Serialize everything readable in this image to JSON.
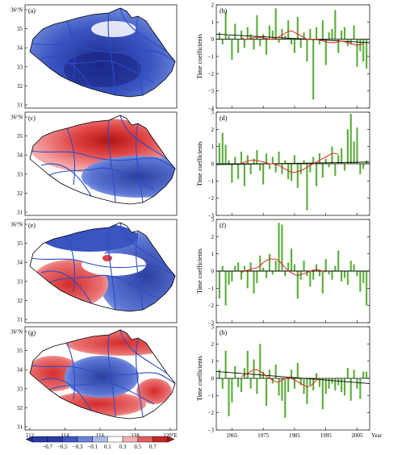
{
  "chart_data": [
    {
      "type": "map",
      "panel": "(a)",
      "field": "negative"
    },
    {
      "type": "map",
      "panel": "(c)",
      "field": "dipole-NS"
    },
    {
      "type": "map",
      "panel": "(e)",
      "field": "dipole-SW"
    },
    {
      "type": "map",
      "panel": "(g)",
      "field": "tripole"
    },
    {
      "type": "bar",
      "panel": "(b)",
      "ylabel": "Time coefficients",
      "ylim": [
        -4,
        2
      ],
      "yticks": [
        -4,
        -3,
        -2,
        -1,
        0,
        1,
        2
      ],
      "x": [
        1961,
        1962,
        1963,
        1964,
        1965,
        1966,
        1967,
        1968,
        1969,
        1970,
        1971,
        1972,
        1973,
        1974,
        1975,
        1976,
        1977,
        1978,
        1979,
        1980,
        1981,
        1982,
        1983,
        1984,
        1985,
        1986,
        1987,
        1988,
        1989,
        1990,
        1991,
        1992,
        1993,
        1994,
        1995,
        1996,
        1997,
        1998,
        1999,
        2000,
        2001,
        2002,
        2003,
        2004,
        2005,
        2006,
        2007,
        2008
      ],
      "values": [
        0.4,
        -0.3,
        1.6,
        0.2,
        -1.2,
        0.9,
        -0.8,
        0.5,
        -0.5,
        0.7,
        0.3,
        -0.6,
        1.4,
        -0.4,
        0.3,
        -0.9,
        0.8,
        0.5,
        1.8,
        -0.2,
        0.6,
        0.2,
        1.1,
        -0.3,
        -0.8,
        1.3,
        -0.5,
        0.4,
        -1.3,
        0.6,
        -3.5,
        0.7,
        -0.3,
        1.1,
        -1.5,
        0.4,
        0.6,
        1.7,
        -0.8,
        0.5,
        0.7,
        -0.4,
        -0.3,
        0.8,
        -1.6,
        -0.7,
        -1.3,
        -1.7
      ],
      "smooth": [
        0.1,
        0.0,
        0.0,
        0.05,
        0.1,
        0.1,
        0.1,
        0.1,
        0.05,
        0.0,
        0.0,
        0.05,
        0.15,
        0.25,
        0.35,
        0.45,
        0.5,
        0.4,
        0.3,
        0.2,
        0.1,
        0.0,
        0.0,
        0.0,
        0.0,
        -0.05,
        -0.1,
        -0.15,
        -0.2,
        -0.2,
        -0.2,
        -0.15,
        -0.1,
        -0.15,
        -0.2,
        -0.25,
        -0.3,
        -0.35,
        -0.3,
        -0.25
      ],
      "trend": [
        0.3,
        -0.2
      ]
    },
    {
      "type": "bar",
      "panel": "(d)",
      "ylabel": "Time coefficients",
      "ylim": [
        -3,
        3
      ],
      "yticks": [
        -3,
        -2,
        -1,
        0,
        1,
        2,
        3
      ],
      "x": [
        1961,
        1962,
        1963,
        1964,
        1965,
        1966,
        1967,
        1968,
        1969,
        1970,
        1971,
        1972,
        1973,
        1974,
        1975,
        1976,
        1977,
        1978,
        1979,
        1980,
        1981,
        1982,
        1983,
        1984,
        1985,
        1986,
        1987,
        1988,
        1989,
        1990,
        1991,
        1992,
        1993,
        1994,
        1995,
        1996,
        1997,
        1998,
        1999,
        2000,
        2001,
        2002,
        2003,
        2004,
        2005,
        2006,
        2007,
        2008
      ],
      "values": [
        1.2,
        1.8,
        1.1,
        0.2,
        -1.1,
        0.4,
        -0.9,
        0.7,
        -1.3,
        0.5,
        -0.6,
        0.3,
        0.8,
        -0.4,
        -1.2,
        0.6,
        -0.3,
        0.4,
        -0.5,
        0.7,
        -0.6,
        0.2,
        -0.9,
        -1.0,
        0.5,
        -1.4,
        -0.6,
        0.2,
        -2.7,
        -0.5,
        0.4,
        -1.3,
        0.6,
        -0.8,
        0.3,
        -0.2,
        1.0,
        -0.7,
        0.5,
        0.9,
        -0.4,
        2.0,
        2.9,
        1.3,
        2.1,
        -0.6,
        -0.3,
        0.2
      ],
      "smooth": [
        0.0,
        0.1,
        0.15,
        0.2,
        0.2,
        0.2,
        0.15,
        0.1,
        0.05,
        0.0,
        0.0,
        -0.05,
        -0.1,
        -0.2,
        -0.3,
        -0.4,
        -0.5,
        -0.5,
        -0.45,
        -0.4,
        -0.3,
        -0.2,
        -0.1,
        0.0,
        0.1,
        0.2,
        0.3,
        0.4,
        0.5,
        0.6,
        0.6,
        0.55
      ],
      "trend": [
        -0.05,
        0.1
      ]
    },
    {
      "type": "bar",
      "panel": "(f)",
      "ylabel": "Time coefficients",
      "ylim": [
        -3,
        3
      ],
      "yticks": [
        -3,
        -2,
        -1,
        0,
        1,
        2,
        3
      ],
      "x": [
        1961,
        1962,
        1963,
        1964,
        1965,
        1966,
        1967,
        1968,
        1969,
        1970,
        1971,
        1972,
        1973,
        1974,
        1975,
        1976,
        1977,
        1978,
        1979,
        1980,
        1981,
        1982,
        1983,
        1984,
        1985,
        1986,
        1987,
        1988,
        1989,
        1990,
        1991,
        1992,
        1993,
        1994,
        1995,
        1996,
        1997,
        1998,
        1999,
        2000,
        2001,
        2002,
        2003,
        2004,
        2005,
        2006,
        2007,
        2008
      ],
      "values": [
        -1.6,
        0.3,
        -2.0,
        -0.8,
        -0.6,
        0.3,
        0.5,
        -0.5,
        0.3,
        -1.0,
        0.5,
        -1.3,
        -0.7,
        0.9,
        0.2,
        -0.4,
        1.0,
        -0.2,
        0.6,
        2.8,
        2.7,
        -0.3,
        0.5,
        1.3,
        0.4,
        -1.6,
        -0.5,
        0.6,
        -0.3,
        -0.9,
        -0.5,
        0.4,
        -0.3,
        -1.3,
        0.7,
        -0.2,
        -0.5,
        0.3,
        1.2,
        -0.6,
        -0.4,
        -0.8,
        0.6,
        0.4,
        -0.3,
        -1.2,
        -0.7,
        -2.0
      ],
      "smooth": [
        -0.1,
        0.0,
        0.05,
        0.1,
        0.15,
        0.2,
        0.3,
        0.5,
        0.6,
        0.7,
        0.7,
        0.7,
        0.6,
        0.4,
        0.2,
        0.0,
        -0.1,
        -0.2,
        -0.25,
        -0.2,
        -0.15,
        -0.1,
        0.0,
        0.05,
        0.1,
        0.05,
        0.0,
        -0.05
      ],
      "trend": [
        0.0,
        0.0
      ]
    },
    {
      "type": "bar",
      "panel": "(h)",
      "ylabel": "Time coefficients",
      "ylim": [
        -3,
        3
      ],
      "yticks": [
        -3,
        -2,
        -1,
        0,
        1,
        2,
        3
      ],
      "x": [
        1961,
        1962,
        1963,
        1964,
        1965,
        1966,
        1967,
        1968,
        1969,
        1970,
        1971,
        1972,
        1973,
        1974,
        1975,
        1976,
        1977,
        1978,
        1979,
        1980,
        1981,
        1982,
        1983,
        1984,
        1985,
        1986,
        1987,
        1988,
        1989,
        1990,
        1991,
        1992,
        1993,
        1994,
        1995,
        1996,
        1997,
        1998,
        1999,
        2000,
        2001,
        2002,
        2003,
        2004,
        2005,
        2006,
        2007,
        2008
      ],
      "values": [
        0.5,
        -0.6,
        1.6,
        -2.2,
        -1.4,
        0.7,
        -0.5,
        -0.8,
        0.6,
        1.6,
        -0.6,
        1.1,
        -0.9,
        2.0,
        0.4,
        -1.6,
        0.5,
        -0.3,
        0.8,
        -1.0,
        -1.3,
        -2.3,
        -0.8,
        0.5,
        -0.6,
        0.9,
        -0.4,
        -0.9,
        -1.5,
        -0.4,
        -0.7,
        0.3,
        -0.5,
        -1.8,
        -0.9,
        -0.6,
        -0.3,
        -0.7,
        -0.4,
        -0.8,
        -1.0,
        0.6,
        -1.3,
        0.5,
        -0.6,
        -1.2,
        0.4,
        0.4
      ],
      "smooth": [
        0.1,
        0.2,
        0.3,
        0.4,
        0.5,
        0.5,
        0.4,
        0.3,
        0.1,
        0.0,
        -0.1,
        -0.2,
        -0.2,
        -0.1,
        0.0,
        0.05,
        0.0,
        -0.1,
        -0.2,
        -0.3,
        -0.4,
        -0.5,
        -0.45,
        -0.3,
        -0.1,
        0.0
      ],
      "trend": [
        0.4,
        -0.3
      ]
    }
  ],
  "map_axes": {
    "lat_ticks": [
      "31",
      "32",
      "33",
      "34",
      "35",
      "36°N"
    ],
    "lon_ticks": [
      "112",
      "114",
      "116",
      "118",
      "120°E"
    ]
  },
  "bar_axes": {
    "year_ticks": [
      "1965",
      "1975",
      "1985",
      "1995",
      "2005"
    ],
    "year_label": "Year"
  },
  "colorbar": {
    "labels": [
      "−0.7",
      "−0.5",
      "−0.3",
      "−0.1",
      "0.1",
      "0.3",
      "0.5",
      "0.7"
    ],
    "colors": [
      "#2a3aa8",
      "#3f56c4",
      "#6a82d8",
      "#a9b9ea",
      "#ffffff",
      "#f2b2b2",
      "#e06060",
      "#c42626"
    ]
  },
  "colors": {
    "bar": "#5cad3c",
    "smooth": "#e0261c",
    "blue": "#3550c0",
    "red": "#e03a3a",
    "river": "#2a4cc6"
  }
}
